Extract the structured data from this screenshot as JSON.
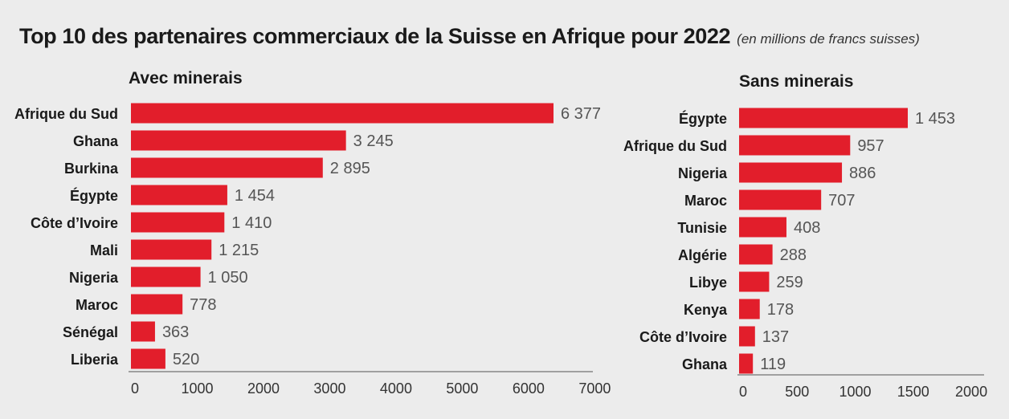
{
  "header": {
    "title": "Top 10 des partenaires commerciaux de la Suisse en Afrique pour 2022",
    "subtitle": "(en millions de francs suisses)"
  },
  "colors": {
    "bar": "#e21e2b",
    "background": "#ececec"
  },
  "chart_data": [
    {
      "type": "bar",
      "orientation": "horizontal",
      "title": "Avec minerais",
      "categories": [
        "Afrique du Sud",
        "Ghana",
        "Burkina",
        "Égypte",
        "Côte d’Ivoire",
        "Mali",
        "Nigeria",
        "Maroc",
        "Sénégal",
        "Liberia"
      ],
      "values": [
        6377,
        3245,
        2895,
        1454,
        1410,
        1215,
        1050,
        778,
        363,
        520
      ],
      "value_labels": [
        "6 377",
        "3 245",
        "2 895",
        "1 454",
        "1 410",
        "1 215",
        "1 050",
        "778",
        "363",
        "520"
      ],
      "xlim": [
        0,
        7000
      ],
      "ticks": [
        0,
        1000,
        2000,
        3000,
        4000,
        5000,
        6000,
        7000
      ],
      "grid": false
    },
    {
      "type": "bar",
      "orientation": "horizontal",
      "title": "Sans minerais",
      "categories": [
        "Égypte",
        "Afrique du Sud",
        "Nigeria",
        "Maroc",
        "Tunisie",
        "Algérie",
        "Libye",
        "Kenya",
        "Côte d’Ivoire",
        "Ghana"
      ],
      "values": [
        1453,
        957,
        886,
        707,
        408,
        288,
        259,
        178,
        137,
        119
      ],
      "value_labels": [
        "1 453",
        "957",
        "886",
        "707",
        "408",
        "288",
        "259",
        "178",
        "137",
        "119"
      ],
      "xlim": [
        0,
        2000
      ],
      "ticks": [
        0,
        500,
        1000,
        1500,
        2000
      ],
      "grid": false
    }
  ]
}
